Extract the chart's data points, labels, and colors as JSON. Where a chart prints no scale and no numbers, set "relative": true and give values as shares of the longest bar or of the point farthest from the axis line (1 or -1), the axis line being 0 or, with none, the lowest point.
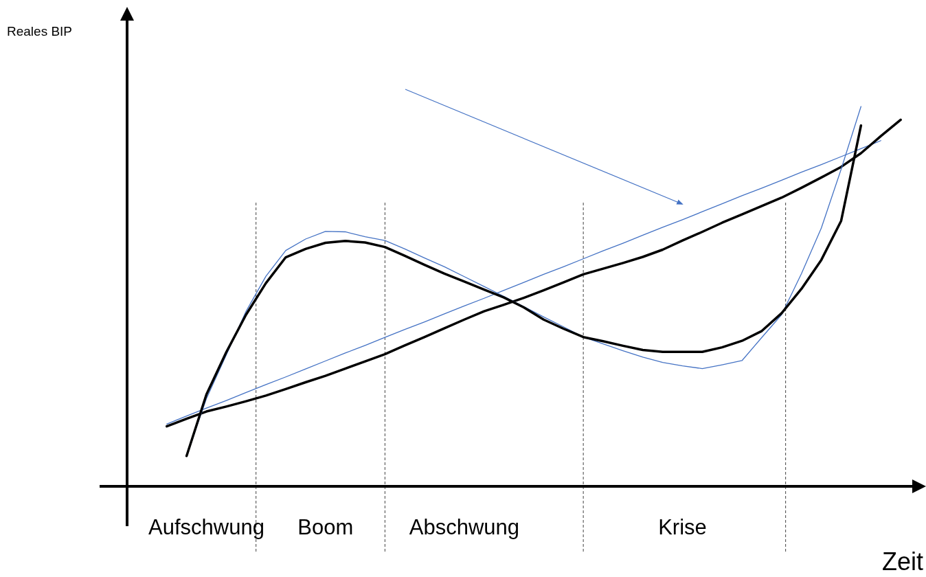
{
  "chart_data": {
    "type": "line",
    "relative": true,
    "xlabel": "Zeit",
    "annotations": [
      "Reales BIP"
    ],
    "marker": "none",
    "line_style": "solid",
    "categories": [
      null,
      null,
      null,
      null,
      "Aufschwung",
      null,
      null,
      null,
      null,
      null,
      "Boom",
      null,
      null,
      null,
      null,
      null,
      null,
      "Abschwung",
      null,
      null,
      null,
      null,
      null,
      null,
      null,
      null,
      null,
      null,
      "Krise",
      null,
      null,
      null,
      null,
      null,
      null,
      null,
      null,
      null,
      null,
      null,
      null
    ],
    "series": [
      {
        "color": "#4472c4",
        "values": [
          null,
          null,
          0.164,
          0.185,
          0.206,
          0.226,
          0.247,
          0.268,
          0.288,
          0.309,
          0.33,
          0.351,
          0.371,
          0.392,
          0.413,
          0.433,
          0.454,
          0.475,
          0.495,
          0.516,
          0.537,
          0.558,
          0.578,
          0.599,
          0.62,
          0.64,
          0.661,
          0.682,
          0.702,
          0.723,
          0.744,
          0.765,
          0.785,
          0.806,
          0.827,
          0.847,
          0.868,
          0.889,
          0.91,
          null,
          null
        ]
      },
      {
        "color": "#000000",
        "values": [
          null,
          null,
          0.158,
          0.178,
          0.197,
          0.21,
          0.224,
          0.239,
          0.256,
          0.274,
          0.291,
          0.31,
          0.329,
          0.348,
          0.371,
          0.393,
          0.416,
          0.439,
          0.461,
          0.478,
          0.496,
          0.516,
          0.537,
          0.558,
          0.573,
          0.588,
          0.604,
          0.623,
          0.647,
          0.67,
          0.694,
          0.716,
          0.738,
          0.76,
          0.786,
          0.813,
          0.841,
          0.877,
          0.922,
          0.965,
          null
        ]
      },
      {
        "color": "#4472c4",
        "values": [
          null,
          null,
          null,
          0.08,
          0.231,
          0.346,
          0.461,
          0.553,
          0.621,
          0.651,
          0.671,
          0.67,
          0.657,
          0.647,
          0.625,
          0.601,
          0.578,
          0.552,
          0.526,
          0.5,
          0.473,
          0.446,
          0.42,
          0.393,
          0.375,
          0.357,
          0.34,
          0.326,
          0.317,
          0.31,
          0.32,
          0.331,
          0.392,
          0.452,
          0.56,
          0.68,
          0.835,
          1.0,
          null,
          null,
          null
        ]
      },
      {
        "color": "#000000",
        "values": [
          null,
          null,
          null,
          0.08,
          0.242,
          0.353,
          0.452,
          0.535,
          0.603,
          0.625,
          0.641,
          0.646,
          0.642,
          0.63,
          0.607,
          0.583,
          0.56,
          0.539,
          0.518,
          0.497,
          0.471,
          0.439,
          0.415,
          0.393,
          0.382,
          0.37,
          0.359,
          0.354,
          0.354,
          0.354,
          0.366,
          0.383,
          0.409,
          0.456,
          0.52,
          0.596,
          0.699,
          0.95,
          null,
          null,
          null
        ]
      }
    ]
  }
}
